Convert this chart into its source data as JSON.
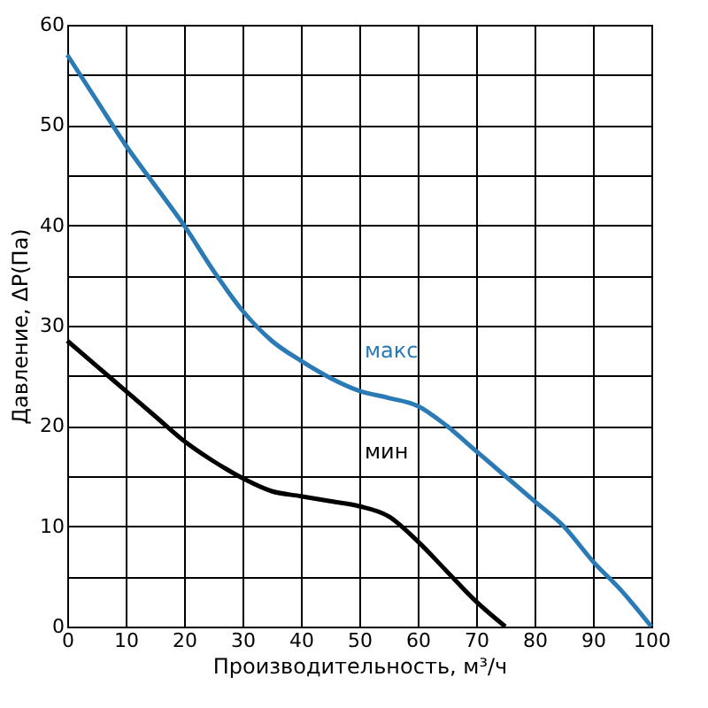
{
  "chart_data": {
    "type": "line",
    "xlabel": "Производительность, м³/ч",
    "ylabel": "Давление, ΔP(Па)",
    "x": [
      0,
      5,
      10,
      15,
      20,
      25,
      30,
      35,
      40,
      45,
      50,
      55,
      60,
      65,
      70,
      75,
      80,
      85,
      90,
      95,
      100
    ],
    "series": [
      {
        "name": "макс",
        "color": "#2a7ab5",
        "values": [
          57,
          52.5,
          48,
          44,
          40,
          35.5,
          31.5,
          28.5,
          26.5,
          24.8,
          23.5,
          22.8,
          22,
          20,
          17.5,
          15,
          12.5,
          10,
          6.5,
          3.5,
          0
        ]
      },
      {
        "name": "мин",
        "color": "#000000",
        "values": [
          28.5,
          26,
          23.5,
          21,
          18.5,
          16.5,
          14.8,
          13.5,
          13,
          12.5,
          12,
          11,
          8.5,
          5.5,
          2.5,
          0,
          null,
          null,
          null,
          null,
          null
        ]
      }
    ],
    "xlim": [
      0,
      100
    ],
    "ylim": [
      0,
      60
    ],
    "xticks": [
      0,
      10,
      20,
      30,
      40,
      50,
      60,
      70,
      80,
      90,
      100
    ],
    "yticks": [
      0,
      {
        "value": 5,
        "label": null
      },
      10,
      {
        "value": 15,
        "label": null
      },
      20,
      {
        "value": 25,
        "label": null
      },
      30,
      {
        "value": 35,
        "label": null
      },
      40,
      {
        "value": 45,
        "label": null
      },
      50,
      {
        "value": 55,
        "label": null
      },
      60
    ],
    "grid": true,
    "legend": false,
    "marker": "none",
    "line_style": "solid"
  }
}
